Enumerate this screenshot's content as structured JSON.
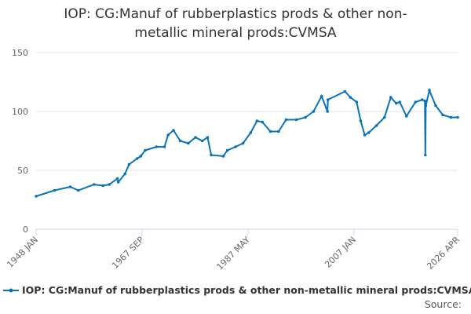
{
  "chart_data": {
    "type": "line",
    "title": "IOP: CG:Manuf of rubberplastics prods & other non-metallic mineral prods:CVMSA",
    "source": "Source:",
    "x": [
      "1948-01",
      "1951-06",
      "1954-05",
      "1955-11",
      "1958-10",
      "1960-06",
      "1961-08",
      "1963-02",
      "1963-04",
      "1964-07",
      "1965-04",
      "1966-10",
      "1967-06",
      "1968-04",
      "1970-05",
      "1971-11",
      "1972-07",
      "1973-07",
      "1974-10",
      "1976-04",
      "1977-08",
      "1978-11",
      "1979-11",
      "1980-07",
      "1982-10",
      "1983-07",
      "1985-01",
      "1986-06",
      "1987-11",
      "1989-01",
      "1990-01",
      "1991-07",
      "1993-01",
      "1994-06",
      "1996-05",
      "1998-01",
      "1999-07",
      "2001-01",
      "2002-02",
      "2002-03",
      "2005-05",
      "2006-05",
      "2007-07",
      "2008-04",
      "2009-01",
      "2009-10",
      "2011-03",
      "2012-09",
      "2013-11",
      "2014-11",
      "2015-07",
      "2016-10",
      "2018-06",
      "2019-09",
      "2020-03",
      "2020-04",
      "2020-05",
      "2021-01",
      "2022-03",
      "2023-07",
      "2025-01",
      "2026-04"
    ],
    "series": [
      {
        "name": "IOP: CG:Manuf of rubberplastics prods & other non-metallic mineral prods:CVMSA",
        "color": "#0a73b8",
        "values": [
          28,
          33,
          36,
          33,
          38,
          37,
          38,
          43,
          40,
          47,
          55,
          60,
          62,
          67,
          70,
          70,
          80,
          84,
          75,
          73,
          78,
          75,
          78,
          63,
          62,
          67,
          70,
          73,
          82,
          92,
          91,
          83,
          83,
          93,
          93,
          95,
          100,
          113,
          100,
          110,
          117,
          112,
          108,
          92,
          80,
          82,
          88,
          95,
          112,
          107,
          108,
          96,
          108,
          110,
          109,
          63,
          105,
          118,
          105,
          97,
          95,
          95
        ]
      }
    ],
    "xlim": [
      "1948-01",
      "2026-04"
    ],
    "xticks": [
      {
        "value": "1948-01",
        "label": "1948 JAN"
      },
      {
        "value": "1967-09",
        "label": "1967 SEP"
      },
      {
        "value": "1987-05",
        "label": "1987 MAY"
      },
      {
        "value": "2007-01",
        "label": "2007 JAN"
      },
      {
        "value": "2026-04",
        "label": "2026 APR"
      }
    ],
    "ylim": [
      0,
      150
    ],
    "yticks": [
      0,
      50,
      100,
      150
    ],
    "grid": true
  }
}
